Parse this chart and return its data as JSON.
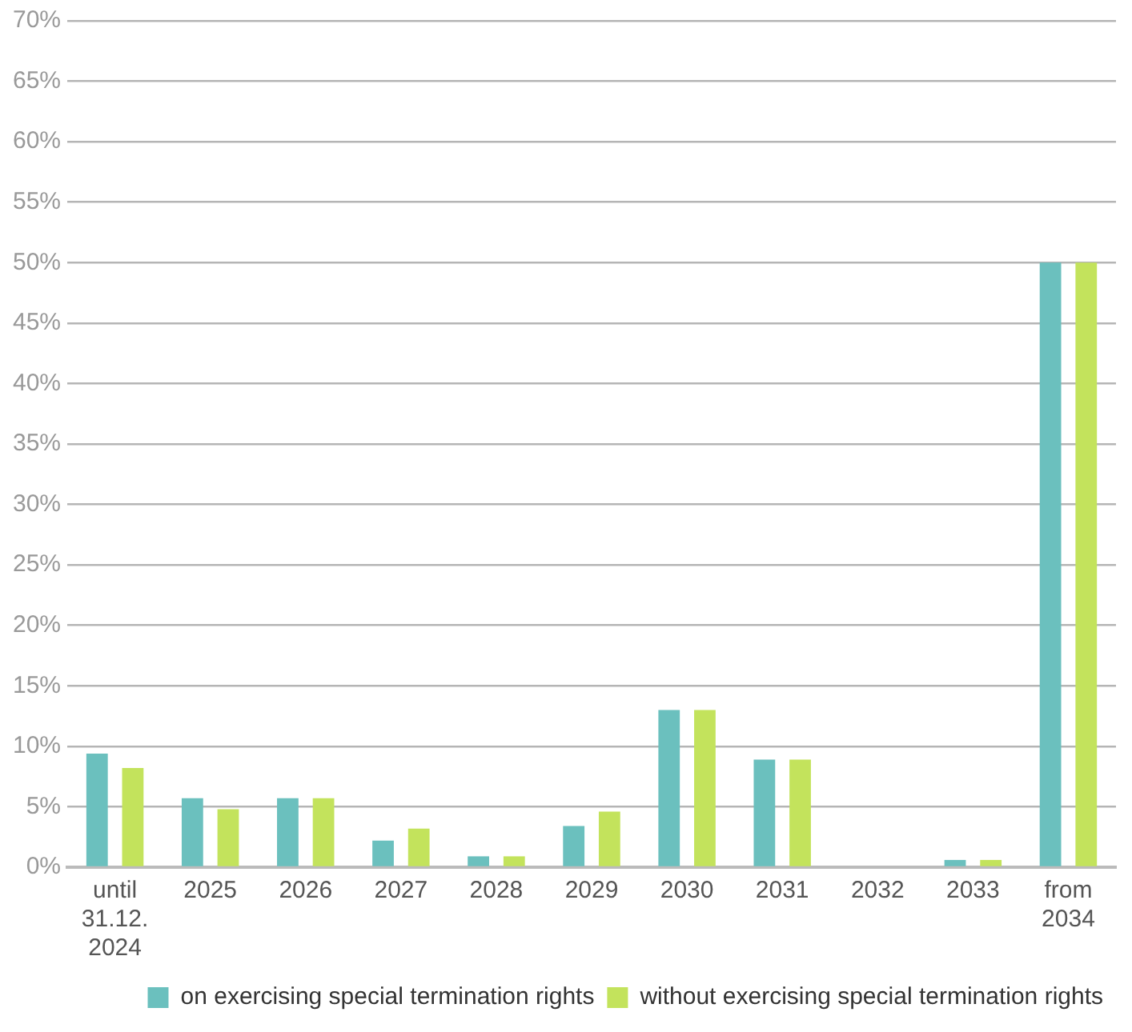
{
  "chart_data": {
    "type": "bar",
    "categories": [
      "until\n31.12.\n2024",
      "2025",
      "2026",
      "2027",
      "2028",
      "2029",
      "2030",
      "2031",
      "2032",
      "2033",
      "from\n2034"
    ],
    "series": [
      {
        "name": "on exercising special termination rights",
        "color": "#6bc0be",
        "values": [
          9.4,
          5.7,
          5.7,
          2.2,
          0.9,
          3.4,
          13.0,
          8.9,
          0,
          0.6,
          50
        ]
      },
      {
        "name": "without exercising special termination rights",
        "color": "#c3e35c",
        "values": [
          8.2,
          4.8,
          5.7,
          3.2,
          0.9,
          4.6,
          13.0,
          8.9,
          0,
          0.6,
          50
        ]
      }
    ],
    "ylim": [
      0,
      70
    ],
    "yticks": [
      {
        "value": 0,
        "label": "0%"
      },
      {
        "value": 5,
        "label": "5%"
      },
      {
        "value": 10,
        "label": "10%"
      },
      {
        "value": 15,
        "label": "15%"
      },
      {
        "value": 20,
        "label": "20%"
      },
      {
        "value": 25,
        "label": "25%"
      },
      {
        "value": 30,
        "label": "30%"
      },
      {
        "value": 35,
        "label": "35%"
      },
      {
        "value": 40,
        "label": "40%"
      },
      {
        "value": 45,
        "label": "45%"
      },
      {
        "value": 50,
        "label": "50%"
      },
      {
        "value": 55,
        "label": "55%"
      },
      {
        "value": 60,
        "label": "60%"
      },
      {
        "value": 65,
        "label": "65%"
      },
      {
        "value": 70,
        "label": "70%"
      }
    ],
    "grid": "y",
    "legend": "bottom right"
  }
}
